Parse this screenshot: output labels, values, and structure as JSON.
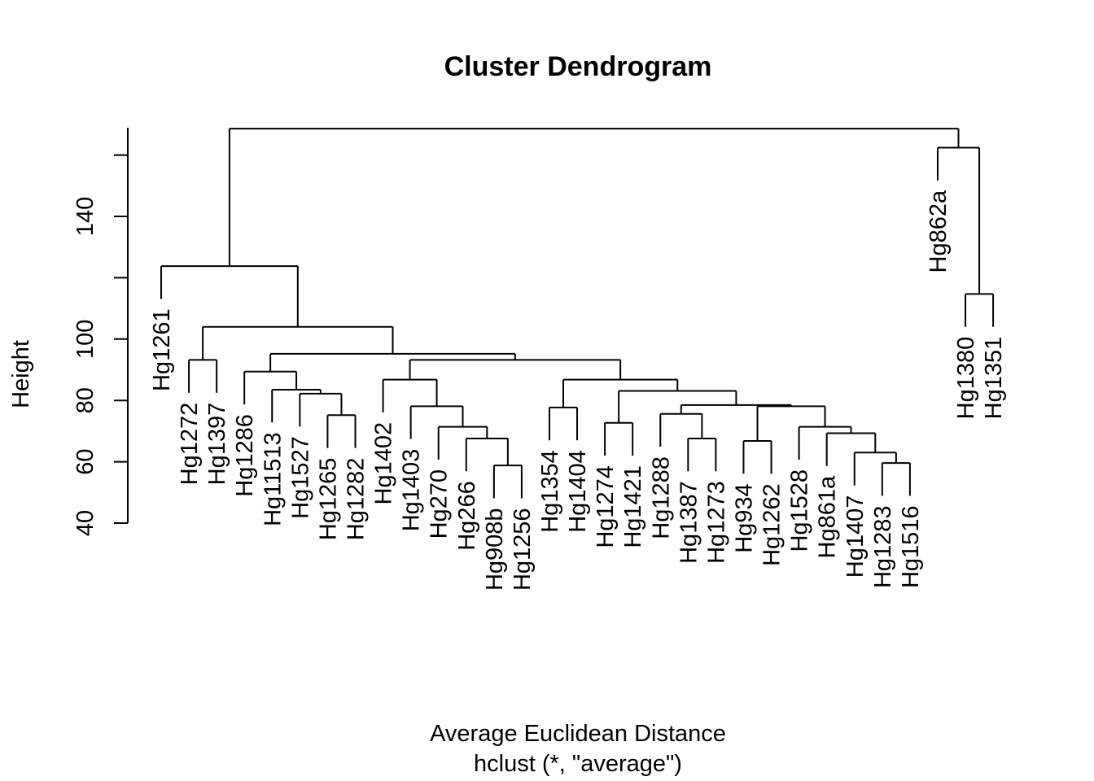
{
  "chart_data": {
    "type": "dendrogram",
    "title": "Cluster Dendrogram",
    "xlabel": "Average Euclidean Distance",
    "sublabel": "hclust (*, \"average\")",
    "ylabel": "Height",
    "yticks": [
      40,
      60,
      80,
      100,
      120,
      140,
      160
    ],
    "ytick_labels": [
      "40",
      "60",
      "80",
      "100",
      "",
      "140",
      ""
    ],
    "ylim": [
      40,
      172
    ],
    "grid": false,
    "leaves": [
      "Hg1261",
      "Hg1272",
      "Hg1397",
      "Hg1286",
      "Hg11513",
      "Hg1527",
      "Hg1265",
      "Hg1282",
      "Hg1402",
      "Hg1403",
      "Hg270",
      "Hg266",
      "Hg908b",
      "Hg1256",
      "Hg1354",
      "Hg1404",
      "Hg1274",
      "Hg1421",
      "Hg1288",
      "Hg1387",
      "Hg1273",
      "Hg934",
      "Hg1262",
      "Hg1528",
      "Hg861a",
      "Hg1407",
      "Hg1283",
      "Hg1516",
      "Hg862a",
      "Hg1380",
      "Hg1351"
    ],
    "merges": [
      {
        "left": "Hg908b",
        "right": "Hg1256",
        "height": 58.8
      },
      {
        "left": "Hg1283",
        "right": "Hg1516",
        "height": 59.6
      },
      {
        "left": "Hg1407",
        "right": "m2",
        "height": 63.0
      },
      {
        "left": "Hg934",
        "right": "Hg1262",
        "height": 66.8
      },
      {
        "left": "Hg266",
        "right": "m1",
        "height": 67.6
      },
      {
        "left": "Hg1387",
        "right": "Hg1273",
        "height": 67.6
      },
      {
        "left": "Hg861a",
        "right": "m3",
        "height": 69.3
      },
      {
        "left": "Hg270",
        "right": "m5",
        "height": 71.4
      },
      {
        "left": "Hg1528",
        "right": "m7",
        "height": 71.4
      },
      {
        "left": "Hg1274",
        "right": "Hg1421",
        "height": 72.7
      },
      {
        "left": "Hg1265",
        "right": "Hg1282",
        "height": 75.2
      },
      {
        "left": "Hg1288",
        "right": "m6",
        "height": 75.6
      },
      {
        "left": "Hg1354",
        "right": "Hg1404",
        "height": 77.7
      },
      {
        "left": "m4",
        "right": "m9",
        "height": 78.1
      },
      {
        "left": "Hg1403",
        "right": "m8",
        "height": 78.1
      },
      {
        "left": "m12",
        "right": "m14",
        "height": 78.5
      },
      {
        "left": "Hg1527",
        "right": "m11",
        "height": 82.2
      },
      {
        "left": "m10",
        "right": "m16",
        "height": 83.1
      },
      {
        "left": "Hg11513",
        "right": "m17",
        "height": 83.5
      },
      {
        "left": "m13",
        "right": "m18",
        "height": 86.8
      },
      {
        "left": "Hg1402",
        "right": "m15",
        "height": 86.8
      },
      {
        "left": "Hg1286",
        "right": "m19",
        "height": 89.4
      },
      {
        "left": "m21",
        "right": "m20",
        "height": 93.2
      },
      {
        "left": "Hg1272",
        "right": "Hg1397",
        "height": 93.2
      },
      {
        "left": "m22",
        "right": "m23",
        "height": 95.2
      },
      {
        "left": "m24",
        "right": "m25",
        "height": 104.0
      },
      {
        "left": "Hg1261",
        "right": "m26",
        "height": 123.8
      },
      {
        "left": "Hg1380",
        "right": "Hg1351",
        "height": 114.7
      },
      {
        "left": "Hg862a",
        "right": "m28",
        "height": 162.4
      },
      {
        "left": "m27",
        "right": "m29",
        "height": 168.6
      }
    ]
  }
}
